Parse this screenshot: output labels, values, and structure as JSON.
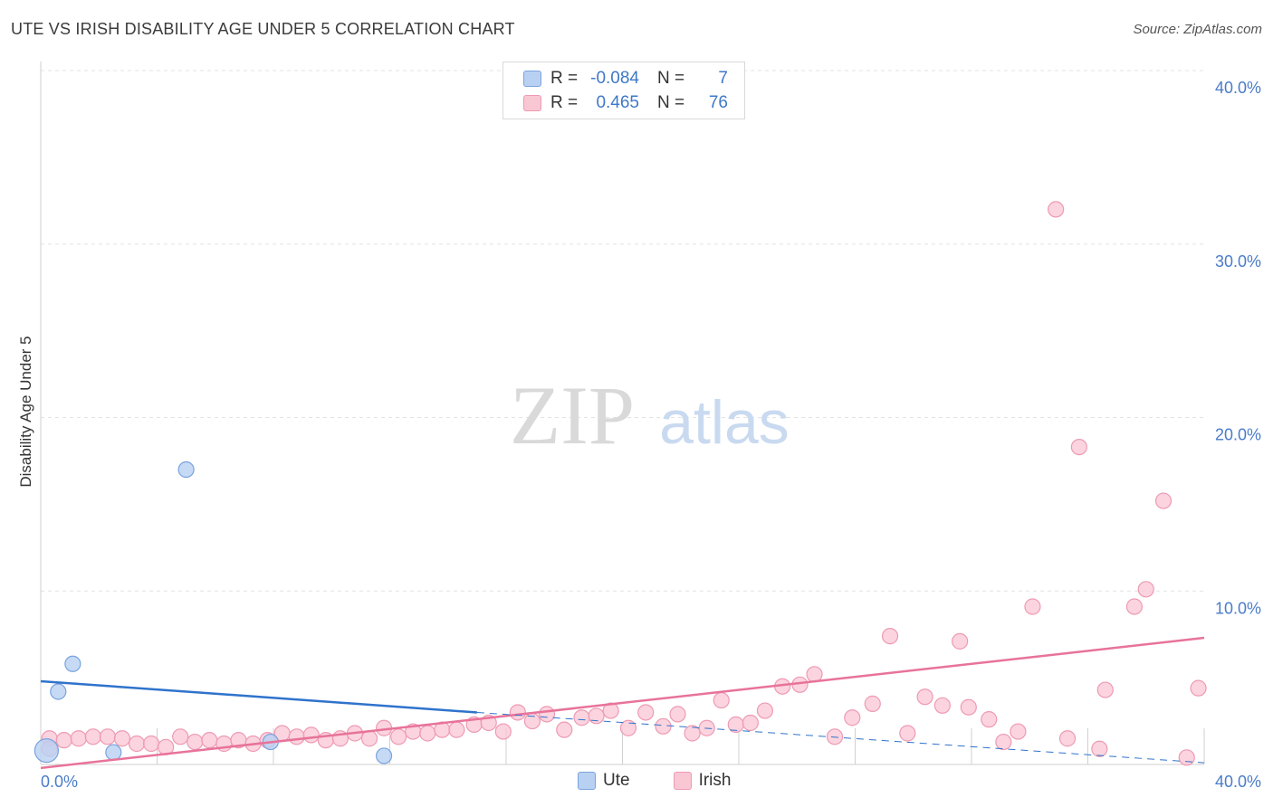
{
  "title": "UTE VS IRISH DISABILITY AGE UNDER 5 CORRELATION CHART",
  "source": "Source: ZipAtlas.com",
  "watermark": {
    "zip": "ZIP",
    "atlas": "atlas"
  },
  "legend": {
    "rows": [
      {
        "name": "Ute",
        "r_label": "R =",
        "r_value": "-0.084",
        "n_label": "N =",
        "n_value": "7",
        "color": "#a8c8f0"
      },
      {
        "name": "Irish",
        "r_label": "R =",
        "r_value": "0.465",
        "n_label": "N =",
        "n_value": "76",
        "color": "#f7b6c8"
      }
    ]
  },
  "bottom_legend": {
    "ute": "Ute",
    "irish": "Irish"
  },
  "colors": {
    "ute_fill": "#b8d1f3",
    "ute_stroke": "#7aa3de",
    "ute_line": "#2f73cc",
    "irish_fill": "#f9c6d4",
    "irish_stroke": "#ee9ab3",
    "irish_line": "#e8739a",
    "grid": "#e3e3e3",
    "tick_text": "#4a7cc9"
  },
  "chart_data": {
    "type": "scatter",
    "title": "UTE VS IRISH DISABILITY AGE UNDER 5 CORRELATION CHART",
    "xlabel": "",
    "ylabel": "Disability Age Under 5",
    "xlim": [
      0,
      40
    ],
    "ylim": [
      0,
      40
    ],
    "x_tick_labels": [
      "0.0%",
      "40.0%"
    ],
    "y_tick_labels": [
      "10.0%",
      "20.0%",
      "30.0%",
      "40.0%"
    ],
    "y_ticks": [
      10,
      20,
      30,
      40
    ],
    "series": [
      {
        "name": "Ute",
        "r": -0.084,
        "n": 7,
        "points": [
          [
            0.2,
            0.8
          ],
          [
            0.6,
            4.2
          ],
          [
            1.1,
            5.8
          ],
          [
            2.5,
            0.7
          ],
          [
            5.0,
            17.0
          ],
          [
            7.9,
            1.3
          ],
          [
            11.8,
            0.5
          ]
        ],
        "trend": {
          "x": [
            0,
            15
          ],
          "y": [
            4.8,
            3.0
          ]
        },
        "trend_dashed": {
          "x": [
            15,
            40
          ],
          "y": [
            3.0,
            0.1
          ]
        }
      },
      {
        "name": "Irish",
        "r": 0.465,
        "n": 76,
        "points": [
          [
            0.3,
            1.5
          ],
          [
            0.8,
            1.4
          ],
          [
            1.3,
            1.5
          ],
          [
            1.8,
            1.6
          ],
          [
            2.3,
            1.6
          ],
          [
            2.8,
            1.5
          ],
          [
            3.3,
            1.2
          ],
          [
            3.8,
            1.2
          ],
          [
            4.3,
            1.0
          ],
          [
            4.8,
            1.6
          ],
          [
            5.3,
            1.3
          ],
          [
            5.8,
            1.4
          ],
          [
            6.3,
            1.2
          ],
          [
            6.8,
            1.4
          ],
          [
            7.3,
            1.2
          ],
          [
            7.8,
            1.4
          ],
          [
            8.3,
            1.8
          ],
          [
            8.8,
            1.6
          ],
          [
            9.3,
            1.7
          ],
          [
            9.8,
            1.4
          ],
          [
            10.3,
            1.5
          ],
          [
            10.8,
            1.8
          ],
          [
            11.3,
            1.5
          ],
          [
            11.8,
            2.1
          ],
          [
            12.3,
            1.6
          ],
          [
            12.8,
            1.9
          ],
          [
            13.3,
            1.8
          ],
          [
            13.8,
            2.0
          ],
          [
            14.3,
            2.0
          ],
          [
            14.9,
            2.3
          ],
          [
            15.4,
            2.4
          ],
          [
            15.9,
            1.9
          ],
          [
            16.4,
            3.0
          ],
          [
            16.9,
            2.5
          ],
          [
            17.4,
            2.9
          ],
          [
            18.0,
            2.0
          ],
          [
            18.6,
            2.7
          ],
          [
            19.1,
            2.8
          ],
          [
            19.6,
            3.1
          ],
          [
            20.2,
            2.1
          ],
          [
            20.8,
            3.0
          ],
          [
            21.4,
            2.2
          ],
          [
            21.9,
            2.9
          ],
          [
            22.4,
            1.8
          ],
          [
            22.9,
            2.1
          ],
          [
            23.4,
            3.7
          ],
          [
            23.9,
            2.3
          ],
          [
            24.4,
            2.4
          ],
          [
            24.9,
            3.1
          ],
          [
            25.5,
            4.5
          ],
          [
            26.1,
            4.6
          ],
          [
            26.6,
            5.2
          ],
          [
            27.3,
            1.6
          ],
          [
            27.9,
            2.7
          ],
          [
            28.6,
            3.5
          ],
          [
            29.2,
            7.4
          ],
          [
            29.8,
            1.8
          ],
          [
            30.4,
            3.9
          ],
          [
            31.0,
            3.4
          ],
          [
            31.6,
            7.1
          ],
          [
            31.9,
            3.3
          ],
          [
            32.6,
            2.6
          ],
          [
            33.1,
            1.3
          ],
          [
            33.6,
            1.9
          ],
          [
            34.1,
            9.1
          ],
          [
            34.9,
            32.0
          ],
          [
            35.3,
            1.5
          ],
          [
            35.7,
            18.3
          ],
          [
            36.4,
            0.9
          ],
          [
            36.6,
            4.3
          ],
          [
            37.6,
            9.1
          ],
          [
            38.0,
            10.1
          ],
          [
            38.6,
            15.2
          ],
          [
            39.4,
            0.4
          ],
          [
            39.8,
            4.4
          ],
          [
            0.3,
            0.9
          ]
        ],
        "trend": {
          "x": [
            0,
            40
          ],
          "y": [
            -0.2,
            7.3
          ]
        }
      }
    ]
  }
}
